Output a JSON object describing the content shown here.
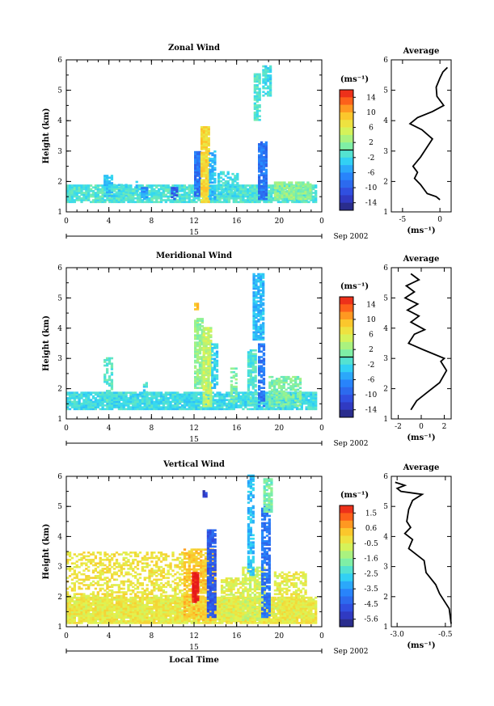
{
  "chart_data": [
    {
      "id": "zonal",
      "type": "heatmap",
      "title": "Zonal Wind",
      "ylabel": "Height (km)",
      "xticks": [
        "0",
        "4",
        "8",
        "12",
        "16",
        "20",
        "0"
      ],
      "yticks": [
        "1",
        "2",
        "3",
        "4",
        "5",
        "6"
      ],
      "xlim": [
        0,
        24
      ],
      "ylim": [
        1,
        6
      ],
      "day_label": "15",
      "month_label": "Sep 2002",
      "colorbar": {
        "unit": "(ms⁻¹)",
        "ticks": [
          "14",
          "10",
          "6",
          "2",
          "-2",
          "-6",
          "-10",
          "-14"
        ],
        "range": [
          -16,
          16
        ],
        "highlight": 0
      },
      "average": {
        "title": "Average",
        "xlabel": "(ms⁻¹)",
        "xticks": [
          "-5",
          "0"
        ],
        "xtick_values": [
          -5,
          0
        ],
        "xlim": [
          -6.5,
          1.5
        ],
        "profile": [
          [
            0.0,
            1.4
          ],
          [
            -0.5,
            1.5
          ],
          [
            -1.7,
            1.6
          ],
          [
            -2.6,
            1.9
          ],
          [
            -3.4,
            2.1
          ],
          [
            -3.0,
            2.3
          ],
          [
            -3.6,
            2.5
          ],
          [
            -2.6,
            2.8
          ],
          [
            -1.8,
            3.1
          ],
          [
            -1.0,
            3.4
          ],
          [
            -2.4,
            3.7
          ],
          [
            -4.0,
            3.9
          ],
          [
            -3.0,
            4.1
          ],
          [
            -1.0,
            4.3
          ],
          [
            0.5,
            4.5
          ],
          [
            -0.4,
            4.8
          ],
          [
            -0.5,
            5.1
          ],
          [
            0.0,
            5.4
          ],
          [
            0.4,
            5.6
          ],
          [
            1.0,
            5.75
          ]
        ]
      }
    },
    {
      "id": "meridional",
      "type": "heatmap",
      "title": "Meridional Wind",
      "ylabel": "Height (km)",
      "xticks": [
        "0",
        "4",
        "8",
        "12",
        "16",
        "20",
        "0"
      ],
      "yticks": [
        "1",
        "2",
        "3",
        "4",
        "5",
        "6"
      ],
      "xlim": [
        0,
        24
      ],
      "ylim": [
        1,
        6
      ],
      "day_label": "15",
      "month_label": "Sep 2002",
      "colorbar": {
        "unit": "(ms⁻¹)",
        "ticks": [
          "14",
          "10",
          "6",
          "2",
          "-2",
          "-6",
          "-10",
          "-14"
        ],
        "range": [
          -16,
          16
        ],
        "highlight": 0
      },
      "average": {
        "title": "Average",
        "xlabel": "(ms⁻¹)",
        "xticks": [
          "-2",
          "0",
          "2"
        ],
        "xtick_values": [
          -2,
          0,
          2
        ],
        "xlim": [
          -2.6,
          2.6
        ],
        "profile": [
          [
            -0.9,
            1.3
          ],
          [
            -0.4,
            1.6
          ],
          [
            0.6,
            1.9
          ],
          [
            1.6,
            2.2
          ],
          [
            2.2,
            2.6
          ],
          [
            1.7,
            2.9
          ],
          [
            2.0,
            3.0
          ],
          [
            0.1,
            3.3
          ],
          [
            -1.1,
            3.5
          ],
          [
            -0.6,
            3.8
          ],
          [
            0.3,
            3.95
          ],
          [
            -0.9,
            4.2
          ],
          [
            -0.2,
            4.4
          ],
          [
            -1.2,
            4.6
          ],
          [
            -0.3,
            4.8
          ],
          [
            -1.4,
            5.0
          ],
          [
            -0.6,
            5.2
          ],
          [
            -1.3,
            5.4
          ],
          [
            -0.2,
            5.6
          ],
          [
            -0.9,
            5.8
          ]
        ]
      }
    },
    {
      "id": "vertical",
      "type": "heatmap",
      "title": "Vertical Wind",
      "ylabel": "Height (km)",
      "xlabel": "Local Time",
      "xticks": [
        "0",
        "4",
        "8",
        "12",
        "16",
        "20",
        "0"
      ],
      "yticks": [
        "1",
        "2",
        "3",
        "4",
        "5",
        "6"
      ],
      "xlim": [
        0,
        24
      ],
      "ylim": [
        1,
        6
      ],
      "day_label": "15",
      "month_label": "Sep 2002",
      "colorbar": {
        "unit": "(ms⁻¹)",
        "ticks": [
          "1.5",
          "0.6",
          "-0.5",
          "-1.6",
          "-2.5",
          "-3.5",
          "-4.5",
          "-5.6"
        ],
        "range": [
          -6.0,
          2.0
        ],
        "highlight": null
      },
      "average": {
        "title": "Average",
        "xlabel": "(ms⁻¹)",
        "xticks": [
          "-3.0",
          "-0.5"
        ],
        "xtick_values": [
          -3.0,
          -0.5
        ],
        "xlim": [
          -3.3,
          -0.2
        ],
        "profile": [
          [
            -0.2,
            1.1
          ],
          [
            -0.3,
            1.6
          ],
          [
            -0.5,
            1.8
          ],
          [
            -0.8,
            2.1
          ],
          [
            -1.0,
            2.4
          ],
          [
            -1.5,
            2.8
          ],
          [
            -1.6,
            3.2
          ],
          [
            -2.0,
            3.4
          ],
          [
            -2.4,
            3.6
          ],
          [
            -2.2,
            3.9
          ],
          [
            -2.6,
            4.1
          ],
          [
            -2.3,
            4.3
          ],
          [
            -2.5,
            4.5
          ],
          [
            -2.4,
            4.9
          ],
          [
            -2.2,
            5.2
          ],
          [
            -1.7,
            5.4
          ],
          [
            -2.8,
            5.5
          ],
          [
            -3.0,
            5.6
          ],
          [
            -2.6,
            5.7
          ],
          [
            -3.1,
            5.8
          ]
        ]
      }
    }
  ]
}
